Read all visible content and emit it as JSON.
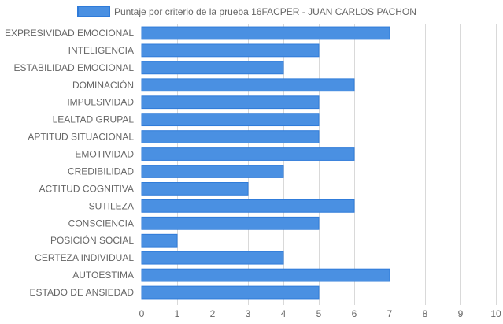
{
  "chart_data": {
    "type": "bar",
    "orientation": "horizontal",
    "legend": {
      "label": "Puntaje por criterio de la prueba 16FACPER - JUAN CARLOS PACHON",
      "position": "top-center"
    },
    "categories": [
      "EXPRESIVIDAD EMOCIONAL",
      "INTELIGENCIA",
      "ESTABILIDAD EMOCIONAL",
      "DOMINACIÓN",
      "IMPULSIVIDAD",
      "LEALTAD GRUPAL",
      "APTITUD SITUACIONAL",
      "EMOTIVIDAD",
      "CREDIBILIDAD",
      "ACTITUD COGNITIVA",
      "SUTILEZA",
      "CONSCIENCIA",
      "POSICIÓN SOCIAL",
      "CERTEZA INDIVIDUAL",
      "AUTOESTIMA",
      "ESTADO DE ANSIEDAD"
    ],
    "series": [
      {
        "name": "Puntaje por criterio de la prueba 16FACPER - JUAN CARLOS PACHON",
        "values": [
          7,
          5,
          4,
          6,
          5,
          5,
          5,
          6,
          4,
          3,
          6,
          5,
          1,
          4,
          7,
          5
        ]
      }
    ],
    "xlim": [
      0,
      10
    ],
    "xticks": [
      "0",
      "1",
      "2",
      "3",
      "4",
      "5",
      "6",
      "7",
      "8",
      "9",
      "10"
    ],
    "grid": true,
    "colors": {
      "bar_fill": "#4a90e2",
      "bar_stroke": "#2f7bd9"
    }
  }
}
